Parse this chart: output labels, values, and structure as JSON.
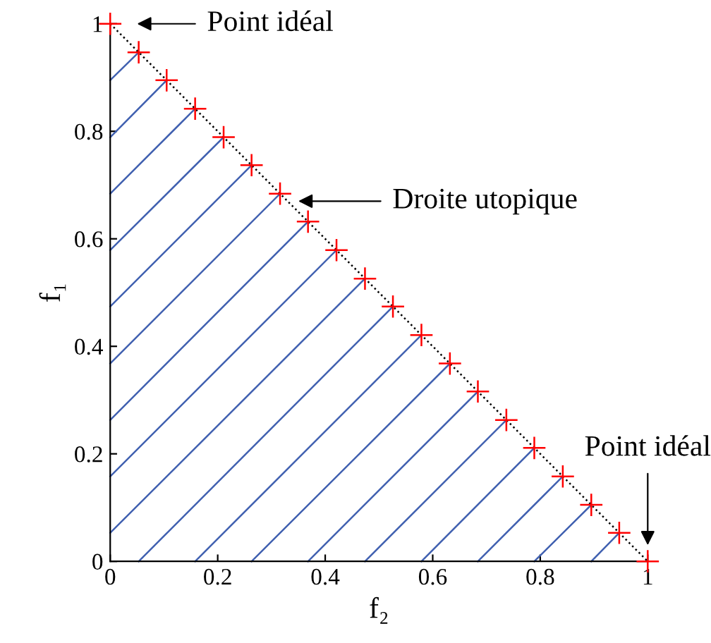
{
  "chart_data": {
    "type": "scatter",
    "xlabel": "f₂",
    "ylabel": "f₁",
    "xlim": [
      0,
      1
    ],
    "ylim": [
      0,
      1
    ],
    "xticks": [
      0,
      0.2,
      0.4,
      0.6,
      0.8,
      1
    ],
    "yticks": [
      0,
      0.2,
      0.4,
      0.6,
      0.8,
      1
    ],
    "grid": false,
    "legend": false,
    "series": [
      {
        "type": "line",
        "color": "#4060b0",
        "x": [
          0.053,
          0
        ],
        "values": [
          0.947,
          0.895
        ]
      },
      {
        "type": "line",
        "color": "#4060b0",
        "x": [
          0.105,
          0
        ],
        "values": [
          0.895,
          0.789
        ]
      },
      {
        "type": "line",
        "color": "#4060b0",
        "x": [
          0.158,
          0
        ],
        "values": [
          0.842,
          0.684
        ]
      },
      {
        "type": "line",
        "color": "#4060b0",
        "x": [
          0.211,
          0
        ],
        "values": [
          0.789,
          0.579
        ]
      },
      {
        "type": "line",
        "color": "#4060b0",
        "x": [
          0.263,
          0
        ],
        "values": [
          0.737,
          0.474
        ]
      },
      {
        "type": "line",
        "color": "#4060b0",
        "x": [
          0.316,
          0
        ],
        "values": [
          0.684,
          0.368
        ]
      },
      {
        "type": "line",
        "color": "#4060b0",
        "x": [
          0.368,
          0
        ],
        "values": [
          0.632,
          0.263
        ]
      },
      {
        "type": "line",
        "color": "#4060b0",
        "x": [
          0.421,
          0
        ],
        "values": [
          0.579,
          0.158
        ]
      },
      {
        "type": "line",
        "color": "#4060b0",
        "x": [
          0.474,
          0
        ],
        "values": [
          0.526,
          0.053
        ]
      },
      {
        "type": "line",
        "color": "#4060b0",
        "x": [
          0.526,
          0.053
        ],
        "values": [
          0.474,
          0
        ]
      },
      {
        "type": "line",
        "color": "#4060b0",
        "x": [
          0.579,
          0.158
        ],
        "values": [
          0.421,
          0
        ]
      },
      {
        "type": "line",
        "color": "#4060b0",
        "x": [
          0.632,
          0.263
        ],
        "values": [
          0.368,
          0
        ]
      },
      {
        "type": "line",
        "color": "#4060b0",
        "x": [
          0.684,
          0.368
        ],
        "values": [
          0.316,
          0
        ]
      },
      {
        "type": "line",
        "color": "#4060b0",
        "x": [
          0.737,
          0.474
        ],
        "values": [
          0.263,
          0
        ]
      },
      {
        "type": "line",
        "color": "#4060b0",
        "x": [
          0.789,
          0.579
        ],
        "values": [
          0.211,
          0
        ]
      },
      {
        "type": "line",
        "color": "#4060b0",
        "x": [
          0.842,
          0.684
        ],
        "values": [
          0.158,
          0
        ]
      },
      {
        "type": "line",
        "color": "#4060b0",
        "x": [
          0.895,
          0.789
        ],
        "values": [
          0.105,
          0
        ]
      },
      {
        "type": "line",
        "color": "#4060b0",
        "x": [
          0.947,
          0.895
        ],
        "values": [
          0.053,
          0
        ]
      },
      {
        "type": "line",
        "color": "#000000",
        "line_style": "dotted",
        "marker": "none",
        "x": [
          0,
          1
        ],
        "values": [
          1,
          0
        ]
      },
      {
        "color": "#ff0000",
        "marker": "cross",
        "x": [
          0,
          0.053,
          0.105,
          0.158,
          0.211,
          0.263,
          0.316,
          0.368,
          0.421,
          0.474,
          0.526,
          0.579,
          0.632,
          0.684,
          0.737,
          0.789,
          0.842,
          0.895,
          0.947,
          1
        ],
        "values": [
          1,
          0.947,
          0.895,
          0.842,
          0.789,
          0.737,
          0.684,
          0.632,
          0.579,
          0.526,
          0.474,
          0.421,
          0.368,
          0.316,
          0.263,
          0.211,
          0.158,
          0.105,
          0.053,
          0
        ]
      }
    ],
    "annotations": [
      "Point idéal",
      "Droite utopique",
      "Point idéal"
    ]
  }
}
